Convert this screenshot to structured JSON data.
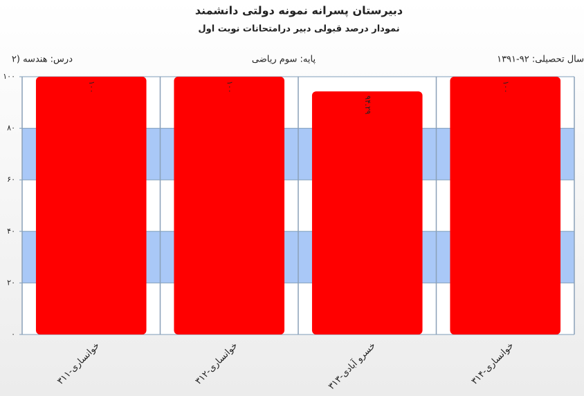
{
  "chart_data": {
    "type": "bar",
    "title": "دبیرستان پسرانه نمونه دولتی دانشمند",
    "subtitle": "نمودار درصد قبولی دبیر درامتحانات نوبت اول",
    "info_right": "سال تحصیلی: ۹۲-۱۳۹۱",
    "info_center": "پایه: سوم ریاضی",
    "info_left": "درس: هندسه (۲",
    "categories": [
      "خوانساری-۳۱۱",
      "خوانساری-۳۱۲",
      "خسرو آبادی-۳۱۳",
      "خوانساری-۳۱۴"
    ],
    "values": [
      100,
      100,
      94.29,
      100
    ],
    "value_labels": [
      "۱۰۰",
      "۱۰۰",
      "۹۴.۲۹",
      "۱۰۰"
    ],
    "color": "#ff0000",
    "band_color": "#a9c8f7",
    "ylim": [
      0,
      100
    ],
    "yticks": [
      {
        "value": 0,
        "label": "۰"
      },
      {
        "value": 20,
        "label": "۲۰"
      },
      {
        "value": 40,
        "label": "۴۰"
      },
      {
        "value": 60,
        "label": "۶۰"
      },
      {
        "value": 80,
        "label": "۸۰"
      },
      {
        "value": 100,
        "label": "۱۰۰"
      }
    ],
    "grid": true
  }
}
